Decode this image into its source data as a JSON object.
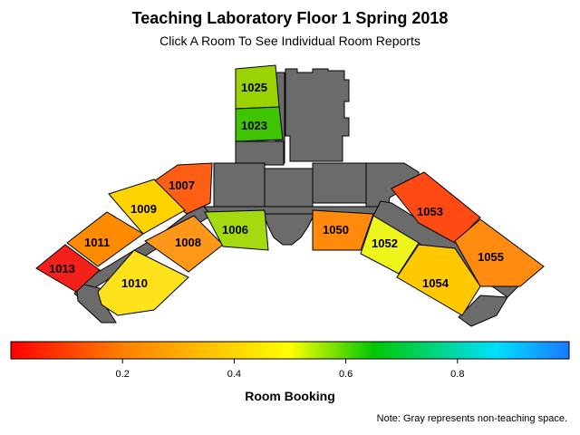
{
  "title": "Teaching Laboratory Floor 1 Spring 2018",
  "subtitle": "Click A Room To See Individual Room Reports",
  "rooms": [
    {
      "id": "1025",
      "color": "#9ad300"
    },
    {
      "id": "1023",
      "color": "#3ec400"
    },
    {
      "id": "1007",
      "color": "#ff5f14"
    },
    {
      "id": "1009",
      "color": "#ffd300"
    },
    {
      "id": "1011",
      "color": "#ff8c00"
    },
    {
      "id": "1013",
      "color": "#f4201a"
    },
    {
      "id": "1010",
      "color": "#fde21c"
    },
    {
      "id": "1008",
      "color": "#ff9818"
    },
    {
      "id": "1006",
      "color": "#a6da10"
    },
    {
      "id": "1050",
      "color": "#ff8a0c"
    },
    {
      "id": "1052",
      "color": "#eef51a"
    },
    {
      "id": "1053",
      "color": "#ff4a14"
    },
    {
      "id": "1054",
      "color": "#ffc800"
    },
    {
      "id": "1055",
      "color": "#ff8c10"
    }
  ],
  "legend": {
    "title": "Room Booking",
    "range": [
      0,
      1
    ],
    "ticks": [
      "0.2",
      "0.4",
      "0.6",
      "0.8"
    ],
    "tick_values": [
      0.2,
      0.4,
      0.6,
      0.8
    ],
    "colors": [
      "#ff0000",
      "#ff8000",
      "#ffff00",
      "#00c800",
      "#00e0ff",
      "#1a78ff"
    ]
  },
  "note": "Note: Gray represents non-teaching space."
}
